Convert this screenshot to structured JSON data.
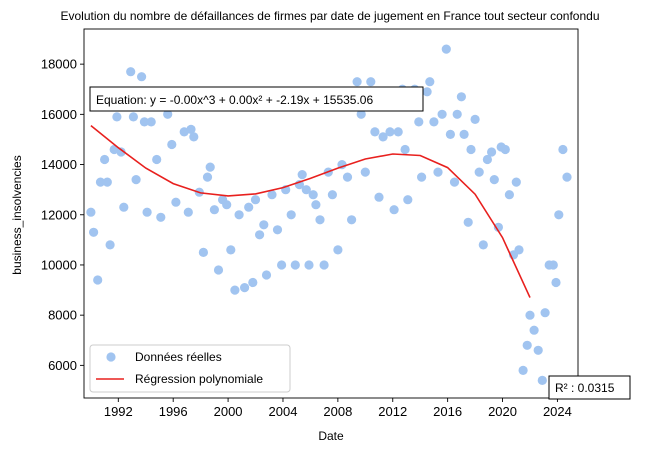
{
  "chart_data": {
    "type": "scatter",
    "title": "Evolution du nombre de défaillances de firmes par date de jugement en France tout secteur confondu",
    "xlabel": "Date",
    "ylabel": "business_insolvencies",
    "xlim": [
      1989.5,
      2025.5
    ],
    "ylim": [
      4700,
      19400
    ],
    "xticks": [
      1992,
      1996,
      2000,
      2004,
      2008,
      2012,
      2016,
      2020,
      2024
    ],
    "yticks": [
      6000,
      8000,
      10000,
      12000,
      14000,
      16000,
      18000
    ],
    "equation_text": "Equation: y = -0.00x^3 + 0.00x² + -2.19x + 15535.06",
    "r2_text": "R² : 0.0315",
    "grid": false,
    "legend_position": "bottom-left",
    "colors": {
      "points": "#a1c4f0",
      "curve": "#e8201e"
    },
    "series": [
      {
        "name": "Données réelles",
        "kind": "scatter",
        "points": [
          [
            1990.0,
            12100
          ],
          [
            1990.2,
            11300
          ],
          [
            1990.5,
            9400
          ],
          [
            1990.7,
            13300
          ],
          [
            1991.0,
            14200
          ],
          [
            1991.2,
            13300
          ],
          [
            1991.4,
            10800
          ],
          [
            1991.7,
            14600
          ],
          [
            1991.9,
            15900
          ],
          [
            1992.2,
            14500
          ],
          [
            1992.4,
            12300
          ],
          [
            1992.9,
            17700
          ],
          [
            1993.1,
            15900
          ],
          [
            1993.3,
            13400
          ],
          [
            1993.7,
            17500
          ],
          [
            1993.9,
            15700
          ],
          [
            1994.1,
            12100
          ],
          [
            1994.4,
            15700
          ],
          [
            1994.8,
            14200
          ],
          [
            1995.1,
            11900
          ],
          [
            1995.6,
            16000
          ],
          [
            1995.9,
            14800
          ],
          [
            1996.2,
            12500
          ],
          [
            1996.8,
            15300
          ],
          [
            1997.1,
            12100
          ],
          [
            1997.3,
            15400
          ],
          [
            1997.5,
            15100
          ],
          [
            1997.9,
            12900
          ],
          [
            1998.2,
            10500
          ],
          [
            1998.5,
            13500
          ],
          [
            1998.7,
            13900
          ],
          [
            1999.0,
            12200
          ],
          [
            1999.3,
            9800
          ],
          [
            1999.6,
            12600
          ],
          [
            1999.9,
            12400
          ],
          [
            2000.2,
            10600
          ],
          [
            2000.5,
            9000
          ],
          [
            2000.8,
            12000
          ],
          [
            2001.2,
            9100
          ],
          [
            2001.5,
            12300
          ],
          [
            2001.8,
            9300
          ],
          [
            2002.0,
            12600
          ],
          [
            2002.3,
            11200
          ],
          [
            2002.6,
            11600
          ],
          [
            2002.8,
            9600
          ],
          [
            2003.2,
            12800
          ],
          [
            2003.6,
            11400
          ],
          [
            2003.9,
            10000
          ],
          [
            2004.2,
            13000
          ],
          [
            2004.6,
            12000
          ],
          [
            2004.9,
            10000
          ],
          [
            2005.2,
            13200
          ],
          [
            2005.4,
            13600
          ],
          [
            2005.7,
            13000
          ],
          [
            2005.9,
            10000
          ],
          [
            2006.2,
            12800
          ],
          [
            2006.4,
            12400
          ],
          [
            2006.7,
            11800
          ],
          [
            2007.0,
            10000
          ],
          [
            2007.3,
            13700
          ],
          [
            2007.6,
            12800
          ],
          [
            2008.0,
            10600
          ],
          [
            2008.3,
            14000
          ],
          [
            2008.7,
            13500
          ],
          [
            2009.0,
            11800
          ],
          [
            2009.4,
            17300
          ],
          [
            2009.7,
            16000
          ],
          [
            2010.0,
            13700
          ],
          [
            2010.4,
            17300
          ],
          [
            2010.7,
            15300
          ],
          [
            2011.0,
            12700
          ],
          [
            2011.3,
            15100
          ],
          [
            2011.8,
            15300
          ],
          [
            2012.1,
            12200
          ],
          [
            2012.4,
            15300
          ],
          [
            2012.7,
            17000
          ],
          [
            2012.9,
            14600
          ],
          [
            2013.1,
            12600
          ],
          [
            2013.6,
            17000
          ],
          [
            2013.9,
            15700
          ],
          [
            2014.1,
            13500
          ],
          [
            2014.5,
            16900
          ],
          [
            2014.7,
            17300
          ],
          [
            2015.0,
            15700
          ],
          [
            2015.3,
            13700
          ],
          [
            2015.6,
            16000
          ],
          [
            2015.9,
            18600
          ],
          [
            2016.2,
            15200
          ],
          [
            2016.5,
            13300
          ],
          [
            2016.7,
            16000
          ],
          [
            2017.0,
            16700
          ],
          [
            2017.2,
            15200
          ],
          [
            2017.5,
            11700
          ],
          [
            2017.7,
            14600
          ],
          [
            2018.0,
            15800
          ],
          [
            2018.3,
            13700
          ],
          [
            2018.6,
            10800
          ],
          [
            2018.9,
            14200
          ],
          [
            2019.2,
            14500
          ],
          [
            2019.4,
            13400
          ],
          [
            2019.7,
            11500
          ],
          [
            2019.9,
            14700
          ],
          [
            2020.2,
            14600
          ],
          [
            2020.5,
            12800
          ],
          [
            2020.8,
            10400
          ],
          [
            2021.0,
            13300
          ],
          [
            2021.2,
            10600
          ],
          [
            2021.5,
            5800
          ],
          [
            2021.8,
            6800
          ],
          [
            2022.0,
            8000
          ],
          [
            2022.3,
            7400
          ],
          [
            2022.6,
            6600
          ],
          [
            2022.9,
            5400
          ],
          [
            2023.1,
            8100
          ],
          [
            2023.4,
            10000
          ],
          [
            2023.7,
            10000
          ],
          [
            2023.9,
            9300
          ],
          [
            2024.1,
            12000
          ],
          [
            2024.4,
            14600
          ],
          [
            2024.7,
            13500
          ]
        ]
      },
      {
        "name": "Régression polynomiale",
        "kind": "line",
        "points": [
          [
            1990,
            15550
          ],
          [
            1992,
            14670
          ],
          [
            1994,
            13860
          ],
          [
            1996,
            13240
          ],
          [
            1998,
            12870
          ],
          [
            2000,
            12750
          ],
          [
            2002,
            12830
          ],
          [
            2004,
            13080
          ],
          [
            2006,
            13450
          ],
          [
            2008,
            13860
          ],
          [
            2010,
            14220
          ],
          [
            2012,
            14420
          ],
          [
            2014,
            14360
          ],
          [
            2016,
            13880
          ],
          [
            2018,
            12820
          ],
          [
            2020,
            11090
          ],
          [
            2022,
            8700
          ]
        ]
      }
    ]
  }
}
